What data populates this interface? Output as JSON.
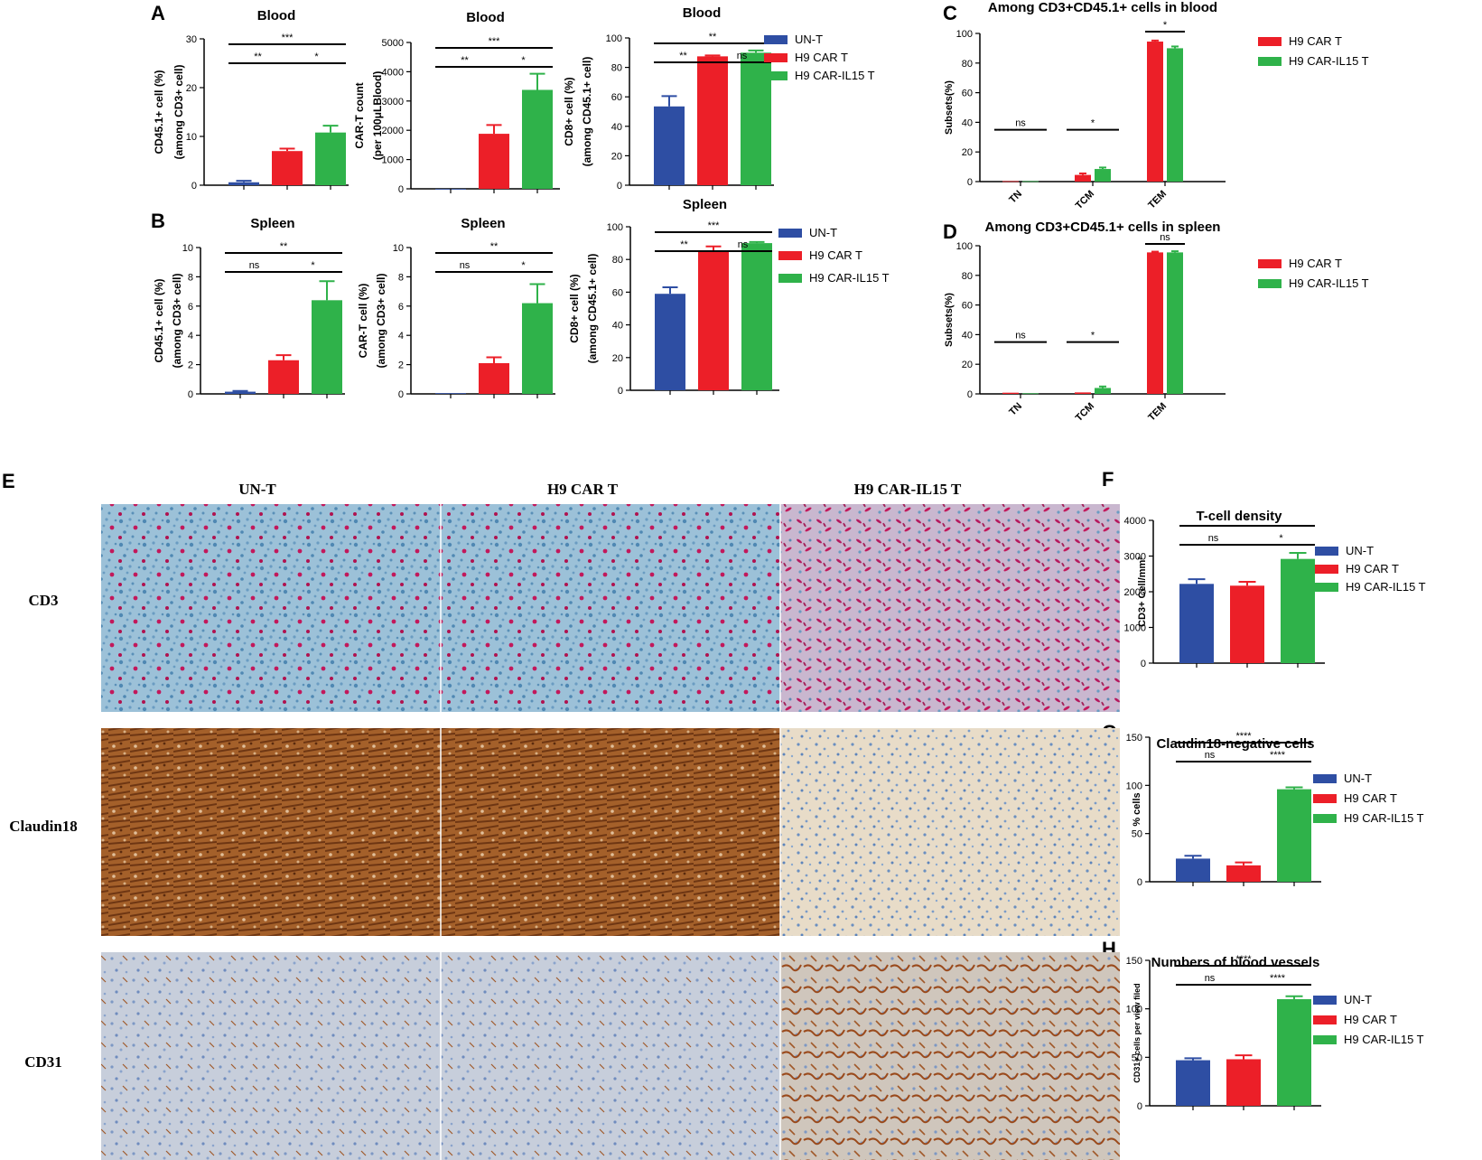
{
  "colors": {
    "un_t": "#2e4ea3",
    "car": "#ec1f28",
    "il15": "#2fb24a",
    "axis": "#000000"
  },
  "panel_letters": [
    "A",
    "B",
    "C",
    "D",
    "E",
    "F",
    "G",
    "H"
  ],
  "histology": {
    "columns": [
      "UN-T",
      "H9 CAR T",
      "H9 CAR-IL15 T"
    ],
    "rows": [
      "CD3",
      "Claudin18",
      "CD31"
    ]
  },
  "chart_data": [
    {
      "id": "a1",
      "type": "bar",
      "title": "Blood",
      "ylabel": "CD45.1+ cell (%)",
      "ylabel2": "(among CD3+ cell)",
      "categories": [
        "UN-T",
        "H9 CAR T",
        "H9 CAR-IL15 T"
      ],
      "values": [
        0.6,
        7.0,
        10.8
      ],
      "errors": [
        0.3,
        0.5,
        1.4
      ],
      "ylim": [
        0,
        30
      ],
      "yticks": [
        "0",
        "10",
        "20",
        "30"
      ],
      "xticklabels": [],
      "sig": [
        {
          "a": 0,
          "b": 2,
          "text": "***",
          "level": 0
        },
        {
          "a": 0,
          "b": 1,
          "text": "**",
          "level": 1
        },
        {
          "a": 1,
          "b": 2,
          "text": "*",
          "level": 1
        }
      ],
      "legend": []
    },
    {
      "id": "a2",
      "type": "bar",
      "title": "Blood",
      "ylabel": "CAR-T count",
      "ylabel2": "(per 100μLBlood)",
      "categories": [
        "UN-T",
        "H9 CAR T",
        "H9 CAR-IL15 T"
      ],
      "values": [
        0,
        1880,
        3380
      ],
      "errors": [
        0,
        300,
        550
      ],
      "ylim": [
        0,
        5000
      ],
      "yticks": [
        "0",
        "1000",
        "2000",
        "3000",
        "4000",
        "5000"
      ],
      "xticklabels": [],
      "sig": [
        {
          "a": 0,
          "b": 2,
          "text": "***",
          "level": 0
        },
        {
          "a": 0,
          "b": 1,
          "text": "**",
          "level": 1
        },
        {
          "a": 1,
          "b": 2,
          "text": "*",
          "level": 1
        }
      ],
      "legend": []
    },
    {
      "id": "a3",
      "type": "bar",
      "title": "Blood",
      "ylabel": "CD8+ cell (%)",
      "ylabel2": "(among CD45.1+ cell)",
      "categories": [
        "UN-T",
        "H9 CAR T",
        "H9 CAR-IL15 T"
      ],
      "values": [
        53.5,
        87.5,
        90
      ],
      "errors": [
        7,
        0.6,
        1.5
      ],
      "ylim": [
        0,
        100
      ],
      "yticks": [
        "0",
        "20",
        "40",
        "60",
        "80",
        "100"
      ],
      "xticklabels": [],
      "sig": [
        {
          "a": 0,
          "b": 2,
          "text": "**",
          "level": 0
        },
        {
          "a": 0,
          "b": 1,
          "text": "**",
          "level": 1
        },
        {
          "a": 1,
          "b": 2,
          "text": "ns",
          "level": 1
        }
      ],
      "legend": [
        "UN-T",
        "H9 CAR T",
        "H9 CAR-IL15 T"
      ]
    },
    {
      "id": "b1",
      "type": "bar",
      "title": "Spleen",
      "ylabel": "CD45.1+ cell (%)",
      "ylabel2": "(among CD3+ cell)",
      "categories": [
        "UN-T",
        "H9 CAR T",
        "H9 CAR-IL15 T"
      ],
      "values": [
        0.15,
        2.3,
        6.4
      ],
      "errors": [
        0.05,
        0.35,
        1.3
      ],
      "ylim": [
        0,
        10
      ],
      "yticks": [
        "0",
        "2",
        "4",
        "6",
        "8",
        "10"
      ],
      "xticklabels": [],
      "sig": [
        {
          "a": 0,
          "b": 2,
          "text": "**",
          "level": 0
        },
        {
          "a": 0,
          "b": 1,
          "text": "ns",
          "level": 1
        },
        {
          "a": 1,
          "b": 2,
          "text": "*",
          "level": 1
        }
      ],
      "legend": []
    },
    {
      "id": "b2",
      "type": "bar",
      "title": "Spleen",
      "ylabel": "CAR-T cell (%)",
      "ylabel2": "(among CD3+ cell)",
      "categories": [
        "UN-T",
        "H9 CAR T",
        "H9 CAR-IL15 T"
      ],
      "values": [
        0.05,
        2.1,
        6.2
      ],
      "errors": [
        0,
        0.4,
        1.3
      ],
      "ylim": [
        0,
        10
      ],
      "yticks": [
        "0",
        "2",
        "4",
        "6",
        "8",
        "10"
      ],
      "xticklabels": [],
      "sig": [
        {
          "a": 0,
          "b": 2,
          "text": "**",
          "level": 0
        },
        {
          "a": 0,
          "b": 1,
          "text": "ns",
          "level": 1
        },
        {
          "a": 1,
          "b": 2,
          "text": "*",
          "level": 1
        }
      ],
      "legend": []
    },
    {
      "id": "b3",
      "type": "bar",
      "title": "Spleen",
      "ylabel": "CD8+ cell (%)",
      "ylabel2": "(among CD45.1+ cell)",
      "categories": [
        "UN-T",
        "H9 CAR T",
        "H9 CAR-IL15 T"
      ],
      "values": [
        59,
        85,
        90
      ],
      "errors": [
        4,
        3,
        0.7
      ],
      "ylim": [
        0,
        100
      ],
      "yticks": [
        "0",
        "20",
        "40",
        "60",
        "80",
        "100"
      ],
      "xticklabels": [],
      "sig": [
        {
          "a": 0,
          "b": 2,
          "text": "***",
          "level": 0
        },
        {
          "a": 0,
          "b": 1,
          "text": "**",
          "level": 1
        },
        {
          "a": 1,
          "b": 2,
          "text": "ns",
          "level": 1
        }
      ],
      "legend": [
        "UN-T",
        "H9 CAR T",
        "H9 CAR-IL15 T"
      ]
    },
    {
      "id": "c",
      "type": "grouped_bar",
      "title": "Among CD3+CD45.1+ cells in blood",
      "ylabel": "Subsets(%)",
      "categories": [
        "TN",
        "TCM",
        "TEM"
      ],
      "series": [
        {
          "name": "H9 CAR T",
          "values": [
            0.3,
            4.5,
            94.5
          ],
          "errors": [
            0,
            1,
            0.7
          ]
        },
        {
          "name": "H9 CAR-IL15 T",
          "values": [
            0.3,
            8.5,
            90
          ],
          "errors": [
            0,
            1,
            1.2
          ]
        }
      ],
      "ylim": [
        0,
        100
      ],
      "yticks": [
        "0",
        "20",
        "40",
        "60",
        "80",
        "100"
      ],
      "sig": [
        {
          "cat": 0,
          "text": "ns"
        },
        {
          "cat": 1,
          "text": "*"
        },
        {
          "cat": 2,
          "text": "*"
        }
      ]
    },
    {
      "id": "d",
      "type": "grouped_bar",
      "title": "Among CD3+CD45.1+ cells in spleen",
      "ylabel": "Subsets(%)",
      "categories": [
        "TN",
        "TCM",
        "TEM"
      ],
      "series": [
        {
          "name": "H9 CAR T",
          "values": [
            0.8,
            1,
            95.5
          ],
          "errors": [
            0,
            0,
            0.5
          ]
        },
        {
          "name": "H9 CAR-IL15 T",
          "values": [
            0.4,
            4,
            95.5
          ],
          "errors": [
            0,
            1,
            0.8
          ]
        }
      ],
      "ylim": [
        0,
        100
      ],
      "yticks": [
        "0",
        "20",
        "40",
        "60",
        "80",
        "100"
      ],
      "sig": [
        {
          "cat": 0,
          "text": "ns"
        },
        {
          "cat": 1,
          "text": "*"
        },
        {
          "cat": 2,
          "text": "ns"
        }
      ]
    },
    {
      "id": "f",
      "type": "bar",
      "title": "T-cell density",
      "ylabel": "CD3+ Cell/mm²",
      "ylabel2": "",
      "categories": [
        "UN-T",
        "H9 CAR T",
        "H9 CAR-IL15 T"
      ],
      "values": [
        2220,
        2170,
        2920
      ],
      "errors": [
        130,
        110,
        170
      ],
      "ylim": [
        0,
        4000
      ],
      "yticks": [
        "0",
        "1000",
        "2000",
        "3000",
        "4000"
      ],
      "xticklabels": [],
      "sig": [
        {
          "a": 0,
          "b": 2,
          "text": "*",
          "level": 0
        },
        {
          "a": 0,
          "b": 1,
          "text": "ns",
          "level": 1
        },
        {
          "a": 1,
          "b": 2,
          "text": "*",
          "level": 1
        }
      ],
      "legend": [
        "UN-T",
        "H9 CAR T",
        "H9 CAR-IL15 T"
      ]
    },
    {
      "id": "g",
      "type": "bar",
      "title": "Claudin18-negative cells",
      "ylabel": "% cells",
      "ylabel2": "",
      "categories": [
        "UN-T",
        "H9 CAR T",
        "H9 CAR-IL15 T"
      ],
      "values": [
        24,
        17,
        96
      ],
      "errors": [
        3,
        3,
        2
      ],
      "ylim": [
        0,
        150
      ],
      "yticks": [
        "0",
        "50",
        "100",
        "150"
      ],
      "xticklabels": [],
      "sig": [
        {
          "a": 0,
          "b": 2,
          "text": "****",
          "level": 0
        },
        {
          "a": 0,
          "b": 1,
          "text": "ns",
          "level": 1
        },
        {
          "a": 1,
          "b": 2,
          "text": "****",
          "level": 1
        }
      ],
      "legend": [
        "UN-T",
        "H9 CAR T",
        "H9 CAR-IL15 T"
      ]
    },
    {
      "id": "h",
      "type": "bar",
      "title": "Numbers of  blood vessels",
      "ylabel": "CD31+ cells per view filed",
      "ylabel2": "",
      "categories": [
        "UN-T",
        "H9 CAR T",
        "H9 CAR-IL15 T"
      ],
      "values": [
        47,
        48,
        110
      ],
      "errors": [
        2,
        4,
        3
      ],
      "ylim": [
        0,
        150
      ],
      "yticks": [
        "0",
        "50",
        "100",
        "150"
      ],
      "xticklabels": [],
      "sig": [
        {
          "a": 0,
          "b": 2,
          "text": "****",
          "level": 0
        },
        {
          "a": 0,
          "b": 1,
          "text": "ns",
          "level": 1
        },
        {
          "a": 1,
          "b": 2,
          "text": "****",
          "level": 1
        }
      ],
      "legend": [
        "UN-T",
        "H9 CAR T",
        "H9 CAR-IL15 T"
      ]
    }
  ]
}
